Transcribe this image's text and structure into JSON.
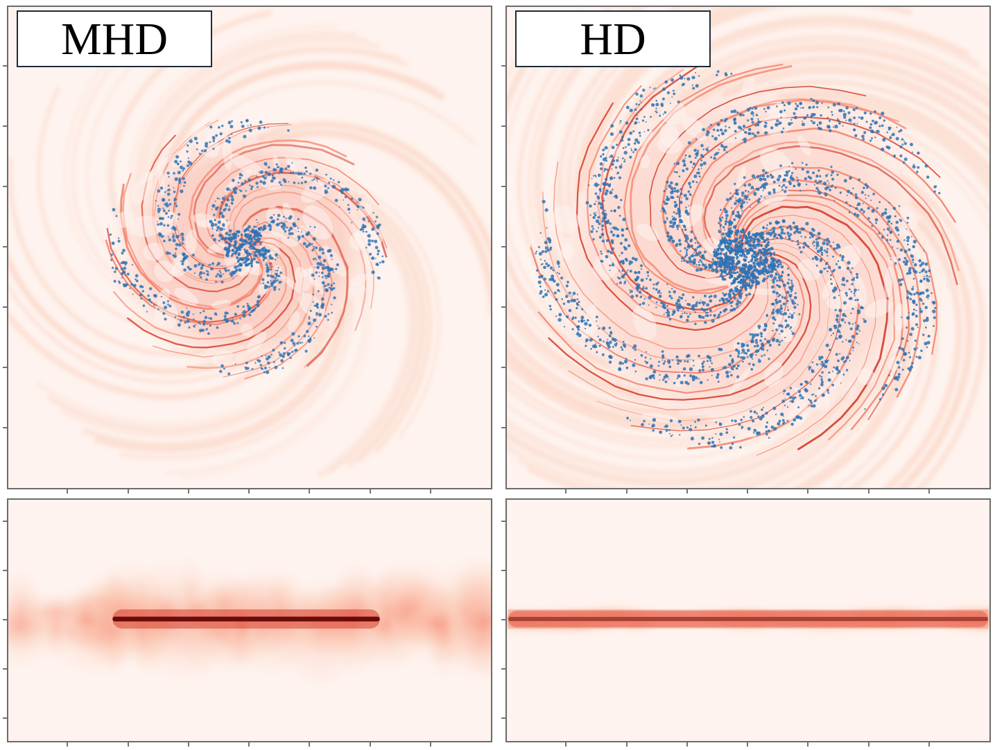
{
  "panels": {
    "mhd": {
      "label": "MHD"
    },
    "hd": {
      "label": "HD"
    }
  },
  "colors": {
    "background": "#fef3ee",
    "gas_light": "#fbc9b4",
    "gas_mid": "#f4836b",
    "gas_dark": "#d7402e",
    "gas_core": "#6b0a0a",
    "stars": "#2f73b5",
    "frame": "#6b6b6b",
    "label_border": "#1e2a38"
  },
  "legend_icons": [
    "gas-density-map",
    "star-particles"
  ]
}
